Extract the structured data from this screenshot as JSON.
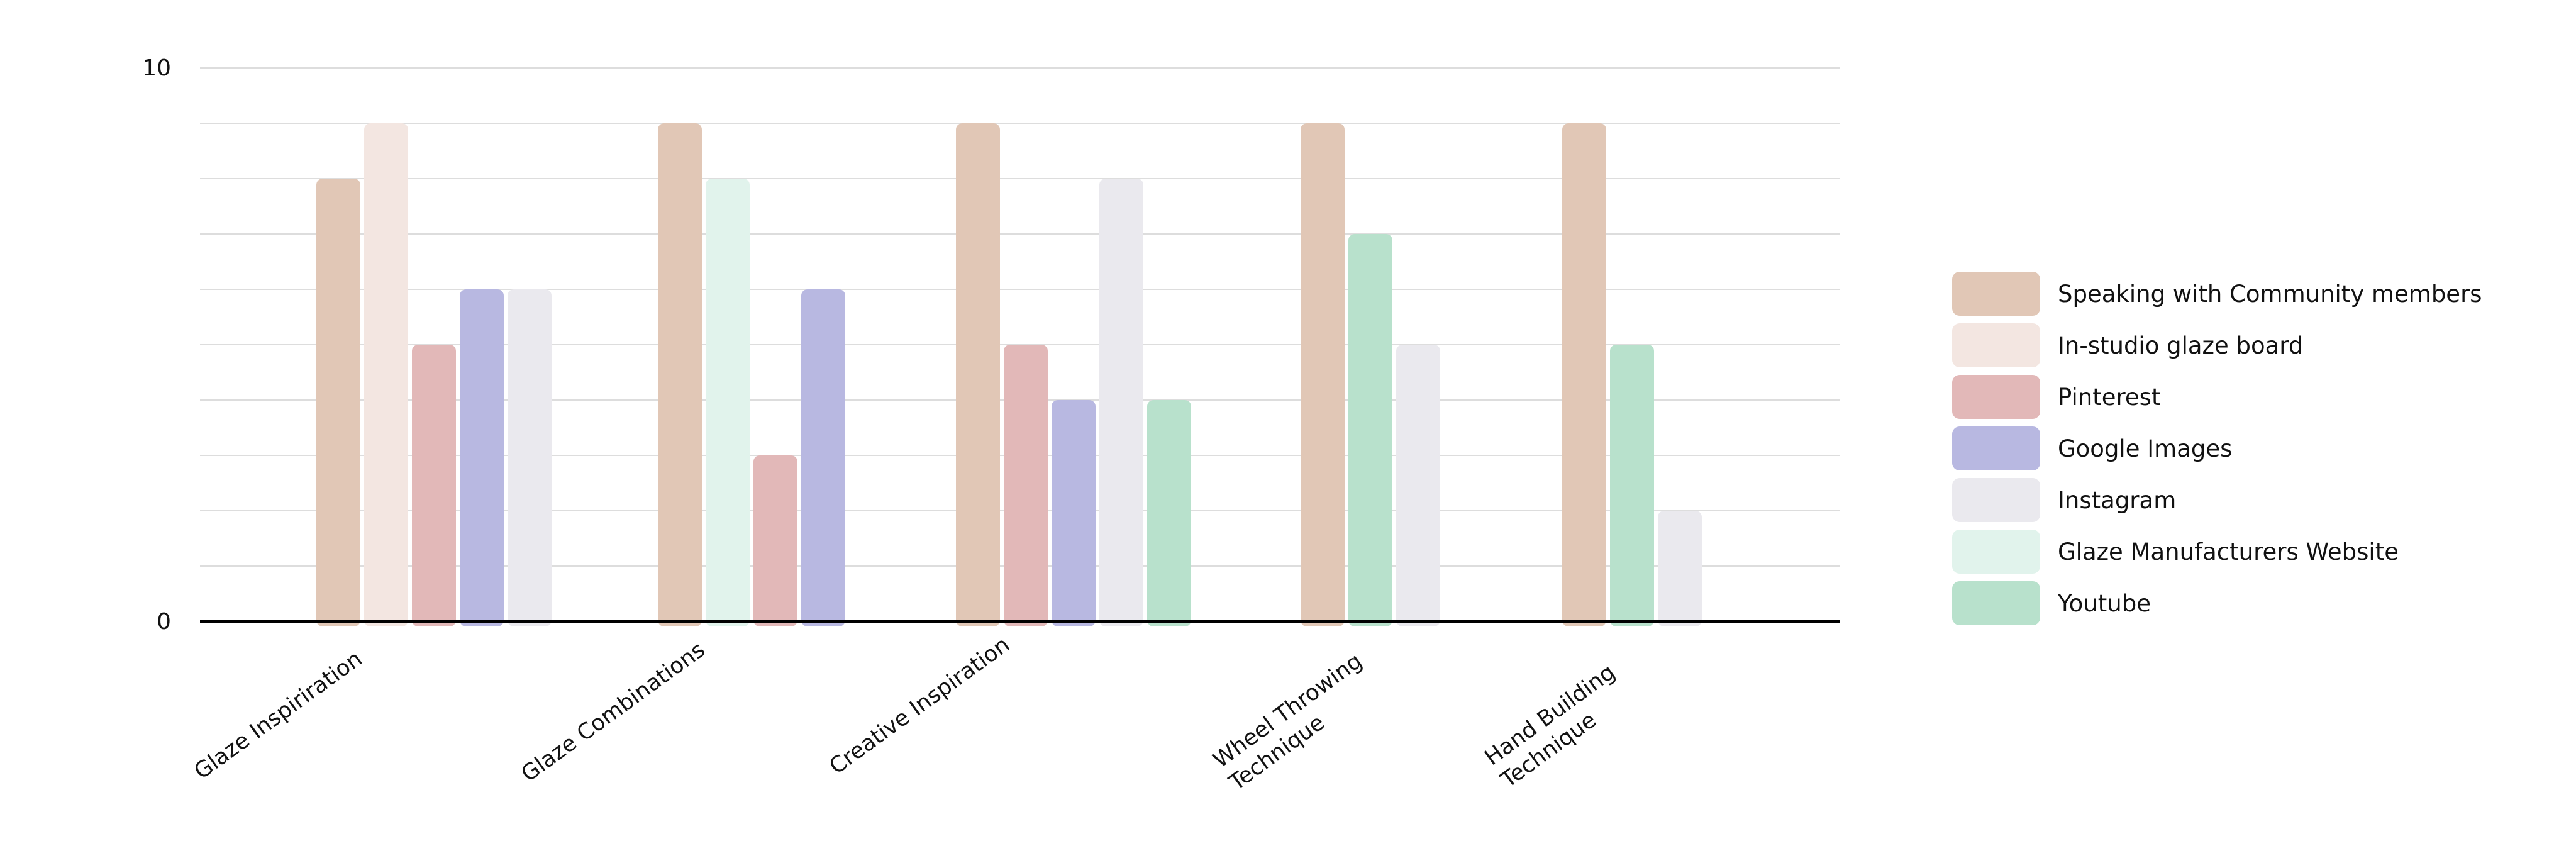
{
  "chart_data": {
    "type": "bar",
    "title": "",
    "xlabel": "",
    "ylabel": "",
    "ylim": [
      0,
      10
    ],
    "y_ticks_labeled": [
      0,
      10
    ],
    "grid": true,
    "grid_step": 1,
    "legend_position": "right",
    "categories": [
      [
        "Glaze Inspiriration"
      ],
      [
        "Glaze Combinations"
      ],
      [
        "Creative Inspiration"
      ],
      [
        "Wheel Throwing",
        "Technique"
      ],
      [
        "Hand Building",
        "Technique"
      ]
    ],
    "series": [
      {
        "name": "Speaking with Community members",
        "color": "#e1c7b6"
      },
      {
        "name": "In-studio glaze board",
        "color": "#f3e6e1"
      },
      {
        "name": "Pinterest",
        "color": "#e2b8b8"
      },
      {
        "name": "Google Images",
        "color": "#b8b8e1"
      },
      {
        "name": "Instagram",
        "color": "#eae9ee"
      },
      {
        "name": "Glaze Manufacturers Website",
        "color": "#e1f3ec"
      },
      {
        "name": "Youtube",
        "color": "#b8e1cc"
      }
    ],
    "groups": [
      {
        "category_index": 0,
        "bars": [
          {
            "series": 0,
            "value": 8
          },
          {
            "series": 1,
            "value": 9
          },
          {
            "series": 2,
            "value": 5
          },
          {
            "series": 3,
            "value": 6
          },
          {
            "series": 4,
            "value": 6
          }
        ]
      },
      {
        "category_index": 1,
        "bars": [
          {
            "series": 0,
            "value": 9
          },
          {
            "series": 5,
            "value": 8
          },
          {
            "series": 2,
            "value": 3
          },
          {
            "series": 3,
            "value": 6
          }
        ]
      },
      {
        "category_index": 2,
        "bars": [
          {
            "series": 0,
            "value": 9
          },
          {
            "series": 2,
            "value": 5
          },
          {
            "series": 3,
            "value": 4
          },
          {
            "series": 4,
            "value": 8
          },
          {
            "series": 6,
            "value": 4
          }
        ]
      },
      {
        "category_index": 3,
        "bars": [
          {
            "series": 0,
            "value": 9
          },
          {
            "series": 6,
            "value": 7
          },
          {
            "series": 4,
            "value": 5
          }
        ]
      },
      {
        "category_index": 4,
        "bars": [
          {
            "series": 0,
            "value": 9
          },
          {
            "series": 6,
            "value": 5
          },
          {
            "series": 4,
            "value": 2
          }
        ]
      }
    ]
  }
}
